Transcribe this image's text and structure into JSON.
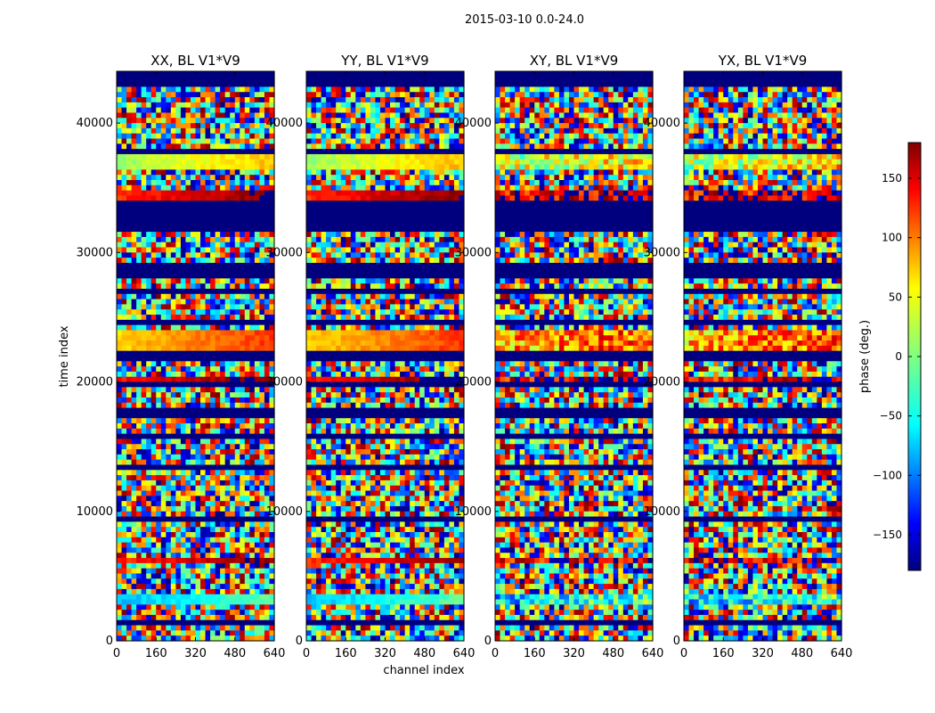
{
  "chart_data": {
    "type": "heatmap",
    "title": "2015-03-10 0.0-24.0",
    "xlabel": "channel index",
    "ylabel": "time index",
    "xlim": [
      0,
      640
    ],
    "ylim": [
      0,
      44000
    ],
    "x_ticks": [
      0,
      160,
      320,
      480,
      640
    ],
    "y_ticks": [
      0,
      10000,
      20000,
      30000,
      40000
    ],
    "panels": [
      {
        "title": "XX, BL V1*V9",
        "feature": "strong"
      },
      {
        "title": "YY, BL V1*V9",
        "feature": "strong"
      },
      {
        "title": "XY, BL V1*V9",
        "feature": "weak"
      },
      {
        "title": "YX, BL V1*V9",
        "feature": "weak"
      }
    ],
    "flagged_time_ranges": [
      [
        31600,
        34000
      ],
      [
        28200,
        29100
      ],
      [
        21500,
        22200
      ],
      [
        17200,
        17900
      ],
      [
        19500,
        19900
      ],
      [
        13200,
        13400
      ],
      [
        9200,
        9400
      ],
      [
        43000,
        44000
      ],
      [
        37800,
        38100
      ],
      [
        24500,
        24800
      ],
      [
        26800,
        27000
      ],
      [
        15600,
        15800
      ],
      [
        5500,
        5700
      ],
      [
        1400,
        1500
      ]
    ],
    "coherent_bands": [
      {
        "range": [
          36500,
          38000
        ],
        "phase": 40
      },
      {
        "range": [
          33000,
          34800
        ],
        "phase": 150
      },
      {
        "range": [
          22400,
          24000
        ],
        "phase": 90
      },
      {
        "range": [
          19800,
          20300
        ],
        "phase": 160
      },
      {
        "range": [
          6000,
          6500
        ],
        "phase": 150
      },
      {
        "range": [
          3000,
          3600
        ],
        "phase": -40
      }
    ],
    "colorbar": {
      "label": "phase (deg.)",
      "range": [
        -180,
        180
      ],
      "ticks": [
        150,
        100,
        50,
        0,
        -50,
        -100,
        -150
      ],
      "tick_labels": [
        "150",
        "100",
        "50",
        "0",
        "−50",
        "−100",
        "−150"
      ],
      "colormap": "jet"
    }
  }
}
